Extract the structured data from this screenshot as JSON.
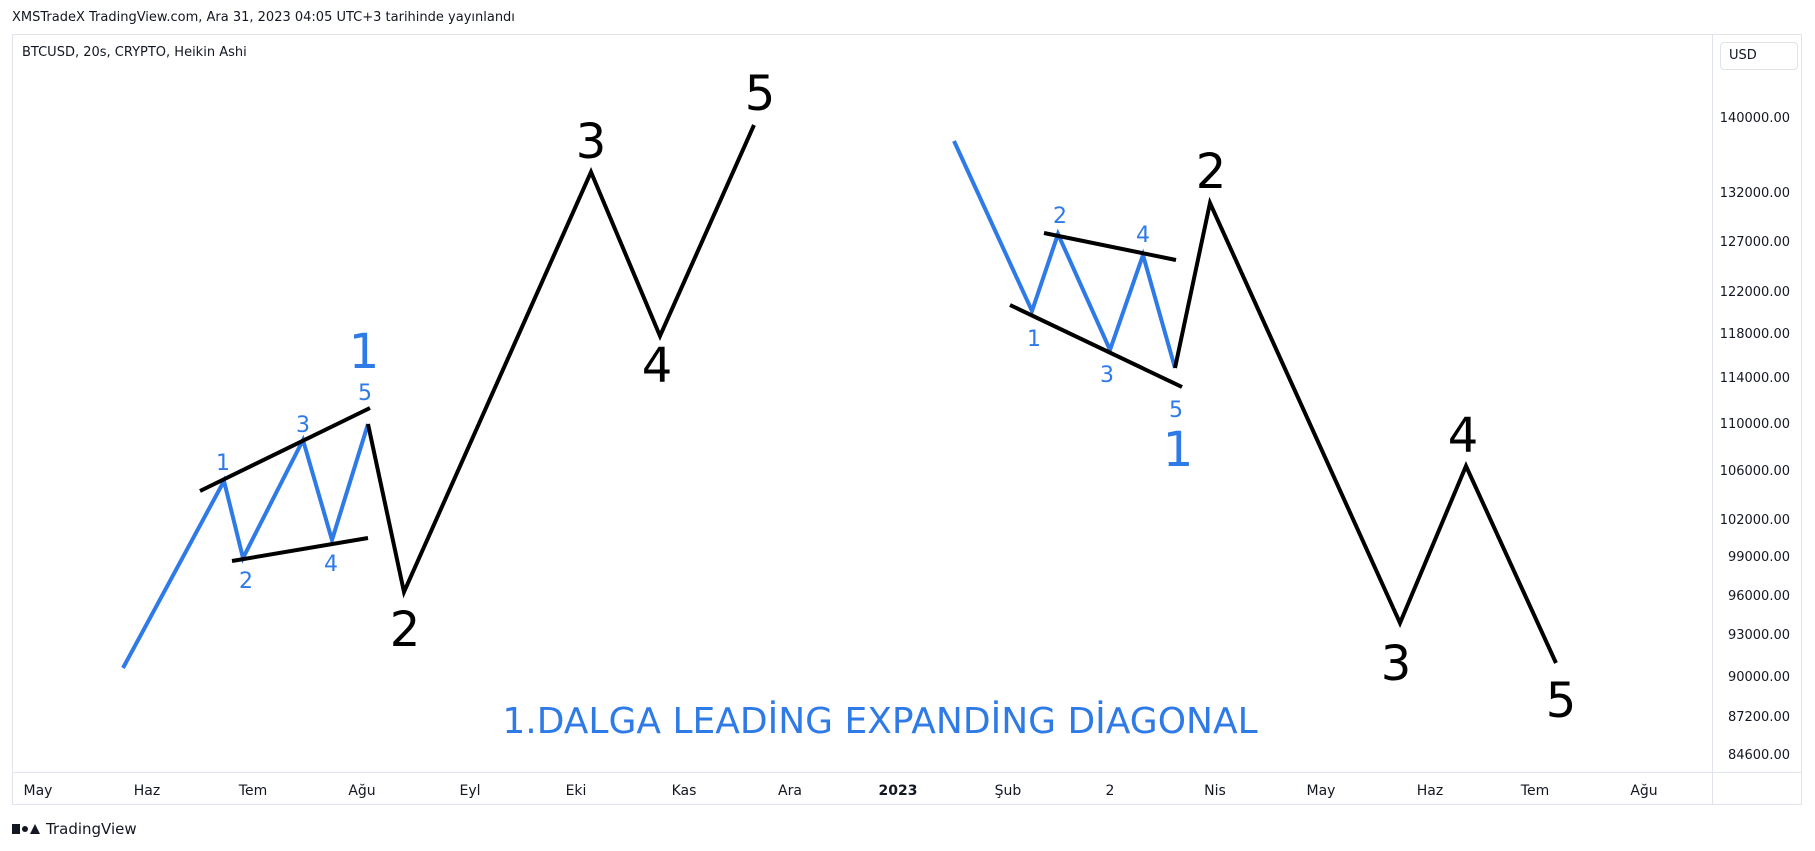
{
  "header": {
    "published": "XMSTradeX TradingView.com, Ara 31, 2023 04:05 UTC+3 tarihinde yayınlandı"
  },
  "chart": {
    "symbol": "BTCUSD, 20s, CRYPTO, Heikin Ashi",
    "currency": "USD"
  },
  "footer": {
    "brand": "TradingView"
  },
  "colors": {
    "blue": "#2e7ae6",
    "black": "#000000"
  },
  "chart_data": {
    "type": "line",
    "title": "1.DALGA LEADİNG EXPANDİNG DİAGONAL",
    "price_ticks": [
      "140000.00",
      "132000.00",
      "127000.00",
      "122000.00",
      "118000.00",
      "114000.00",
      "110000.00",
      "106000.00",
      "102000.00",
      "99000.00",
      "96000.00",
      "93000.00",
      "90000.00",
      "87200.00",
      "84600.00"
    ],
    "time_ticks": [
      "May",
      "Haz",
      "Tem",
      "Ağu",
      "Eyl",
      "Eki",
      "Kas",
      "Ara",
      "2023",
      "Şub",
      "2",
      "Nis",
      "May",
      "Haz",
      "Tem",
      "Ağu"
    ],
    "wave_labels": [
      {
        "text": "1",
        "color": "blue",
        "size": "large"
      },
      {
        "text": "1",
        "color": "blue",
        "size": "small"
      },
      {
        "text": "2",
        "color": "blue",
        "size": "small"
      },
      {
        "text": "3",
        "color": "blue",
        "size": "small"
      },
      {
        "text": "4",
        "color": "blue",
        "size": "small"
      },
      {
        "text": "5",
        "color": "blue",
        "size": "small"
      },
      {
        "text": "2",
        "color": "black",
        "size": "large"
      },
      {
        "text": "3",
        "color": "black",
        "size": "large"
      },
      {
        "text": "4",
        "color": "black",
        "size": "large"
      },
      {
        "text": "5",
        "color": "black",
        "size": "large"
      },
      {
        "text": "1",
        "color": "blue",
        "size": "small"
      },
      {
        "text": "2",
        "color": "blue",
        "size": "small"
      },
      {
        "text": "3",
        "color": "blue",
        "size": "small"
      },
      {
        "text": "4",
        "color": "blue",
        "size": "small"
      },
      {
        "text": "5",
        "color": "blue",
        "size": "small"
      },
      {
        "text": "1",
        "color": "blue",
        "size": "large"
      },
      {
        "text": "2",
        "color": "black",
        "size": "large"
      },
      {
        "text": "3",
        "color": "black",
        "size": "large"
      },
      {
        "text": "4",
        "color": "black",
        "size": "large"
      },
      {
        "text": "5",
        "color": "black",
        "size": "large"
      }
    ]
  }
}
